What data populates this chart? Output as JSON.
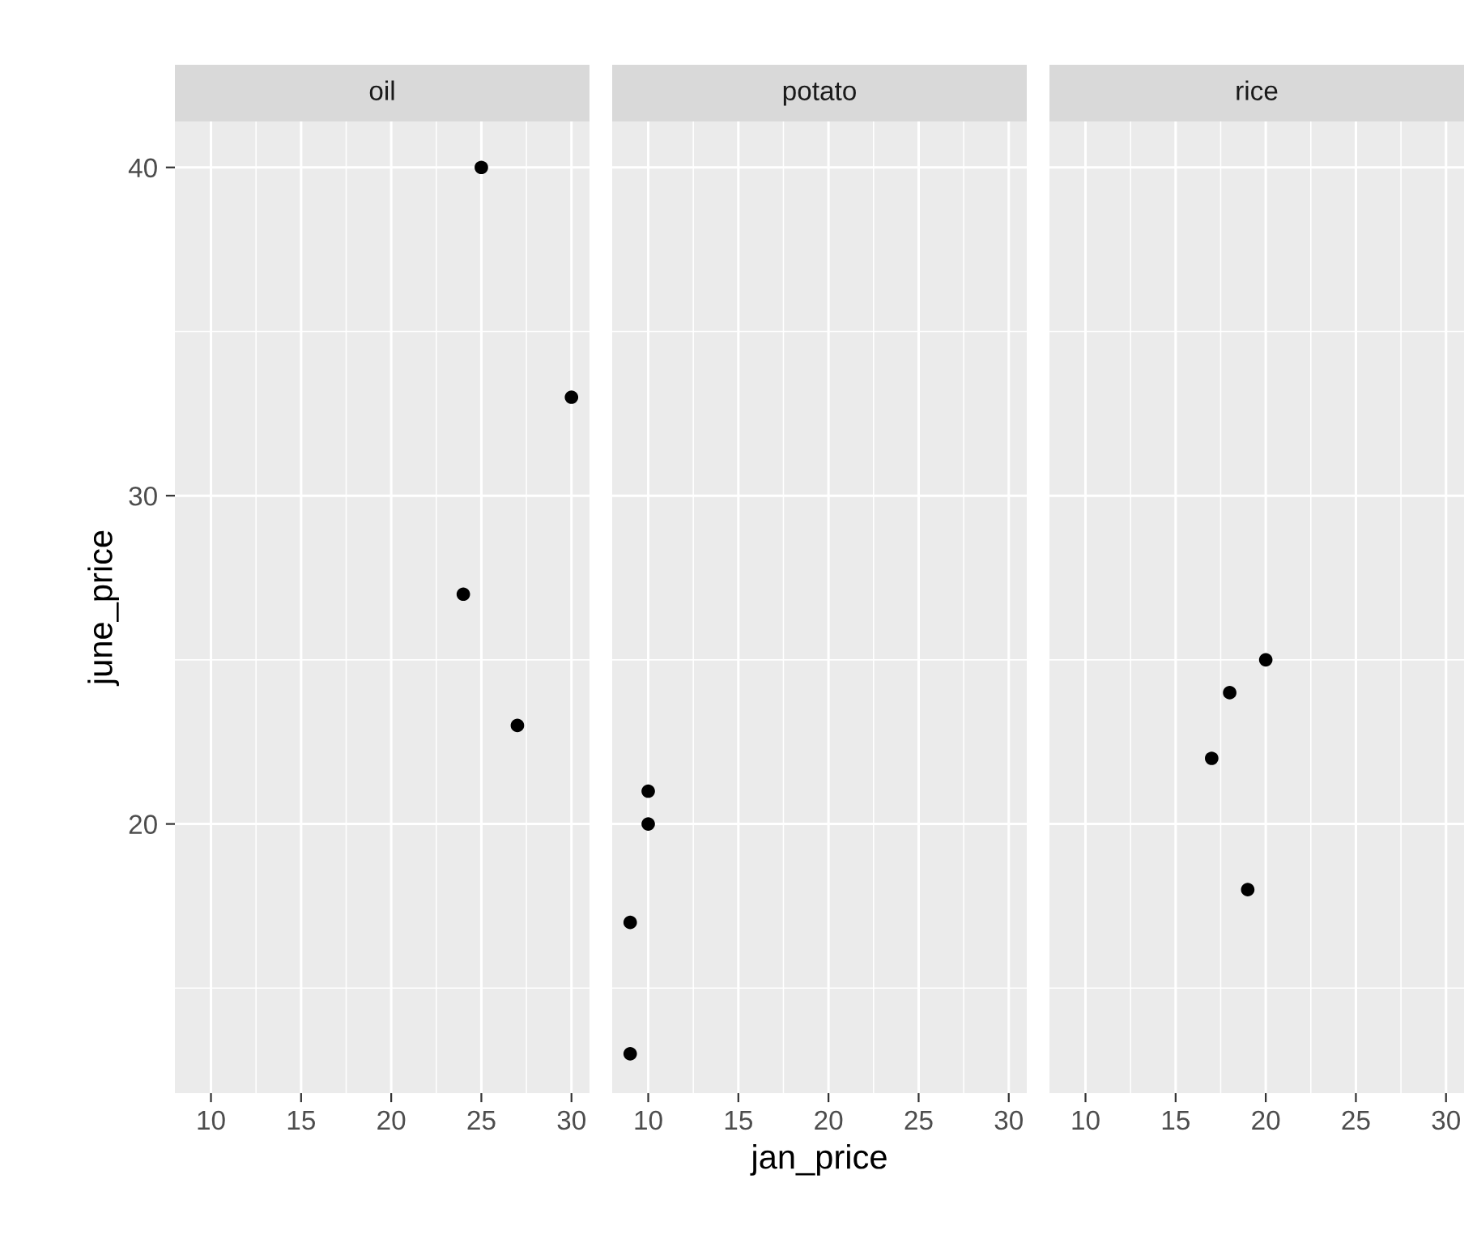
{
  "chart_data": [
    {
      "type": "scatter",
      "title": "oil",
      "ylabel": "june_price",
      "x": [
        25,
        30,
        24,
        27
      ],
      "values": [
        40,
        33,
        27,
        23
      ],
      "color": "#000000",
      "marker": "circle",
      "xlim": [
        8,
        31
      ],
      "ylim": [
        11.8,
        41.4
      ],
      "xticks": [
        10,
        15,
        20,
        25,
        30
      ],
      "yticks": [
        20,
        30,
        40
      ],
      "grid": true
    },
    {
      "type": "scatter",
      "title": "potato",
      "xlabel": "jan_price",
      "x": [
        10,
        10,
        9,
        9
      ],
      "values": [
        21,
        20,
        17,
        13
      ],
      "color": "#000000",
      "marker": "circle",
      "xlim": [
        8,
        31
      ],
      "ylim": [
        11.8,
        41.4
      ],
      "xticks": [
        10,
        15,
        20,
        25,
        30
      ],
      "yticks": [
        20,
        30,
        40
      ],
      "grid": true,
      "tick_labels": "x"
    },
    {
      "type": "scatter",
      "title": "rice",
      "x": [
        20,
        18,
        17,
        19
      ],
      "values": [
        25,
        24,
        22,
        18
      ],
      "color": "#000000",
      "marker": "circle",
      "xlim": [
        8,
        31
      ],
      "ylim": [
        11.8,
        41.4
      ],
      "xticks": [
        10,
        15,
        20,
        25,
        30
      ],
      "yticks": [
        20,
        30,
        40
      ],
      "grid": true,
      "tick_labels": "x"
    }
  ]
}
